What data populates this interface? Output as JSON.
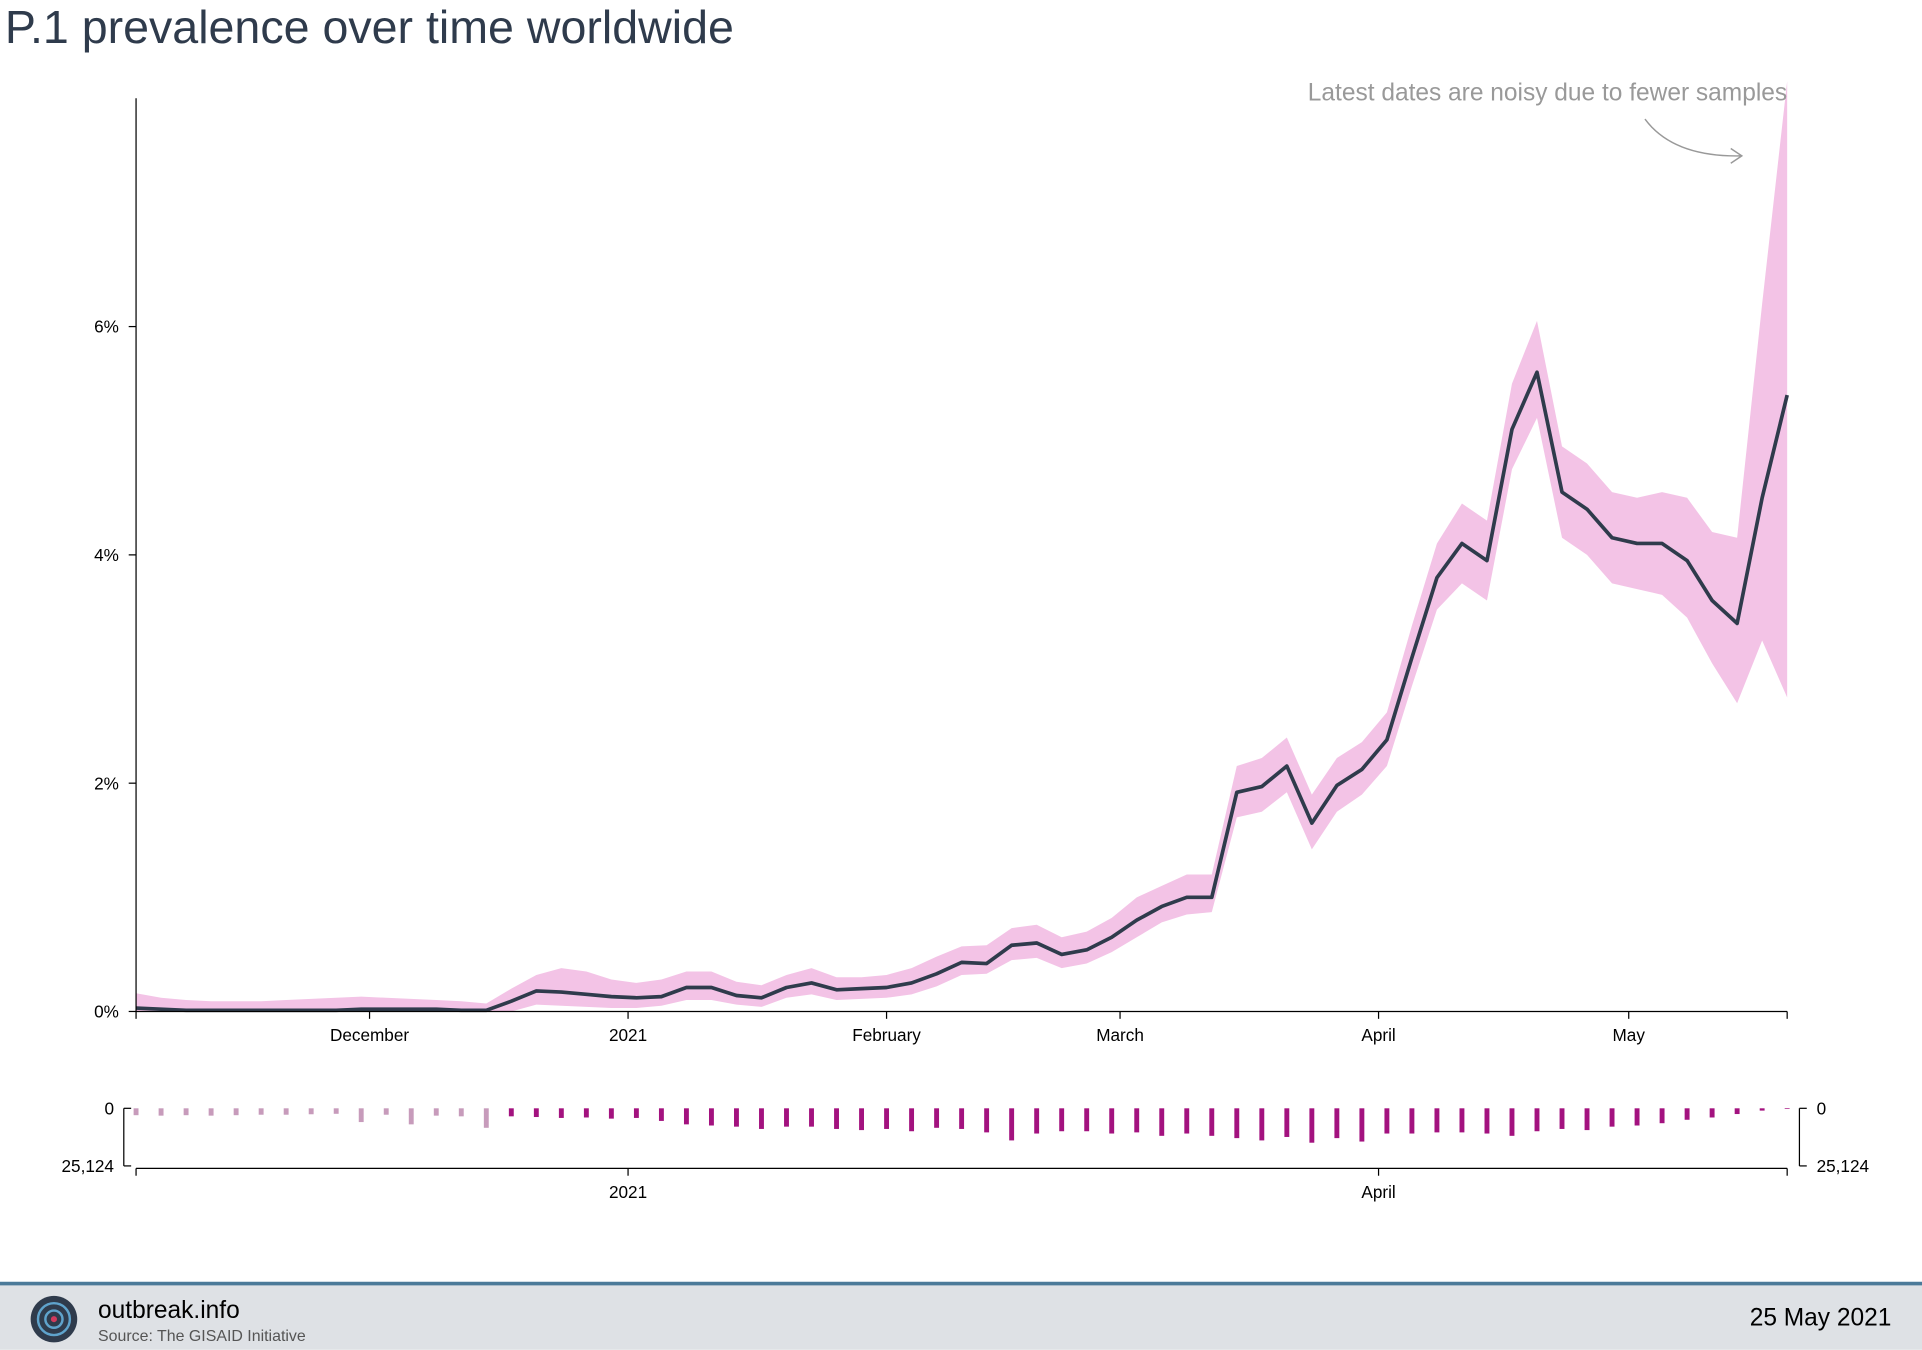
{
  "chart_data": [
    {
      "type": "line",
      "title": "P.1 prevalence over time worldwide",
      "annotation": "Latest dates are noisy due to fewer samples",
      "x": [
        "2020-11-03",
        "2020-11-06",
        "2020-11-09",
        "2020-11-12",
        "2020-11-15",
        "2020-11-18",
        "2020-11-21",
        "2020-11-24",
        "2020-11-27",
        "2020-11-30",
        "2020-12-03",
        "2020-12-06",
        "2020-12-09",
        "2020-12-12",
        "2020-12-15",
        "2020-12-18",
        "2020-12-21",
        "2020-12-24",
        "2020-12-27",
        "2020-12-30",
        "2021-01-02",
        "2021-01-05",
        "2021-01-08",
        "2021-01-11",
        "2021-01-14",
        "2021-01-17",
        "2021-01-20",
        "2021-01-23",
        "2021-01-26",
        "2021-01-29",
        "2021-02-01",
        "2021-02-04",
        "2021-02-07",
        "2021-02-10",
        "2021-02-13",
        "2021-02-16",
        "2021-02-19",
        "2021-02-22",
        "2021-02-25",
        "2021-02-28",
        "2021-03-03",
        "2021-03-06",
        "2021-03-09",
        "2021-03-12",
        "2021-03-15",
        "2021-03-18",
        "2021-03-21",
        "2021-03-24",
        "2021-03-27",
        "2021-03-30",
        "2021-04-02",
        "2021-04-05",
        "2021-04-08",
        "2021-04-11",
        "2021-04-14",
        "2021-04-17",
        "2021-04-20",
        "2021-04-23",
        "2021-04-26",
        "2021-04-29",
        "2021-05-02",
        "2021-05-05",
        "2021-05-08",
        "2021-05-11",
        "2021-05-14",
        "2021-05-17",
        "2021-05-20"
      ],
      "values": [
        0.03,
        0.02,
        0.01,
        0.01,
        0.01,
        0.01,
        0.01,
        0.01,
        0.01,
        0.02,
        0.02,
        0.02,
        0.02,
        0.01,
        0.01,
        0.09,
        0.18,
        0.17,
        0.15,
        0.13,
        0.12,
        0.13,
        0.21,
        0.21,
        0.14,
        0.12,
        0.21,
        0.25,
        0.19,
        0.2,
        0.21,
        0.25,
        0.33,
        0.43,
        0.42,
        0.58,
        0.6,
        0.5,
        0.54,
        0.65,
        0.8,
        0.92,
        1.0,
        1.0,
        1.92,
        1.97,
        2.15,
        1.65,
        1.98,
        2.12,
        2.38,
        3.1,
        3.8,
        4.1,
        3.95,
        5.1,
        5.6,
        4.55,
        4.4,
        4.15,
        4.1,
        4.1,
        3.95,
        3.6,
        3.4,
        4.5,
        5.4
      ],
      "lower": [
        0,
        0,
        0,
        0,
        0,
        0,
        0,
        0,
        0,
        0,
        0,
        0,
        0,
        0,
        0,
        0,
        0.06,
        0.05,
        0.04,
        0.03,
        0.03,
        0.05,
        0.1,
        0.1,
        0.06,
        0.04,
        0.12,
        0.15,
        0.1,
        0.11,
        0.12,
        0.15,
        0.22,
        0.32,
        0.33,
        0.45,
        0.47,
        0.38,
        0.42,
        0.52,
        0.65,
        0.78,
        0.85,
        0.87,
        1.7,
        1.75,
        1.92,
        1.42,
        1.75,
        1.9,
        2.15,
        2.85,
        3.52,
        3.75,
        3.6,
        4.75,
        5.2,
        4.15,
        4.0,
        3.75,
        3.7,
        3.65,
        3.45,
        3.05,
        2.7,
        3.25,
        2.75
      ],
      "upper": [
        0.16,
        0.12,
        0.1,
        0.09,
        0.09,
        0.09,
        0.1,
        0.11,
        0.12,
        0.13,
        0.12,
        0.11,
        0.1,
        0.09,
        0.07,
        0.2,
        0.32,
        0.38,
        0.35,
        0.28,
        0.25,
        0.28,
        0.35,
        0.35,
        0.26,
        0.23,
        0.32,
        0.38,
        0.3,
        0.3,
        0.32,
        0.38,
        0.48,
        0.57,
        0.58,
        0.73,
        0.76,
        0.65,
        0.7,
        0.82,
        1.0,
        1.1,
        1.2,
        1.2,
        2.15,
        2.22,
        2.4,
        1.9,
        2.22,
        2.36,
        2.62,
        3.38,
        4.1,
        4.45,
        4.3,
        5.5,
        6.05,
        4.95,
        4.8,
        4.55,
        4.5,
        4.55,
        4.5,
        4.2,
        4.15,
        6.2,
        8.15
      ],
      "color": "#2f3b4c",
      "band_color": "#f3c3e6",
      "xlim": [
        "2020-11-03",
        "2021-05-20"
      ],
      "ylim": [
        0,
        8
      ],
      "xticks": [
        {
          "value": "2020-12-01",
          "label": "December"
        },
        {
          "value": "2021-01-01",
          "label": "2021"
        },
        {
          "value": "2021-02-01",
          "label": "February"
        },
        {
          "value": "2021-03-01",
          "label": "March"
        },
        {
          "value": "2021-04-01",
          "label": "April"
        },
        {
          "value": "2021-05-01",
          "label": "May"
        }
      ],
      "yticks": [
        {
          "value": 0,
          "label": "0%"
        },
        {
          "value": 2,
          "label": "2%"
        },
        {
          "value": 4,
          "label": "4%"
        },
        {
          "value": 6,
          "label": "6%"
        }
      ]
    },
    {
      "type": "bar",
      "x": [
        "2020-11-03",
        "2020-11-06",
        "2020-11-09",
        "2020-11-12",
        "2020-11-15",
        "2020-11-18",
        "2020-11-21",
        "2020-11-24",
        "2020-11-27",
        "2020-11-30",
        "2020-12-03",
        "2020-12-06",
        "2020-12-09",
        "2020-12-12",
        "2020-12-15",
        "2020-12-18",
        "2020-12-21",
        "2020-12-24",
        "2020-12-27",
        "2020-12-30",
        "2021-01-02",
        "2021-01-05",
        "2021-01-08",
        "2021-01-11",
        "2021-01-14",
        "2021-01-17",
        "2021-01-20",
        "2021-01-23",
        "2021-01-26",
        "2021-01-29",
        "2021-02-01",
        "2021-02-04",
        "2021-02-07",
        "2021-02-10",
        "2021-02-13",
        "2021-02-16",
        "2021-02-19",
        "2021-02-22",
        "2021-02-25",
        "2021-02-28",
        "2021-03-03",
        "2021-03-06",
        "2021-03-09",
        "2021-03-12",
        "2021-03-15",
        "2021-03-18",
        "2021-03-21",
        "2021-03-24",
        "2021-03-27",
        "2021-03-30",
        "2021-04-02",
        "2021-04-05",
        "2021-04-08",
        "2021-04-11",
        "2021-04-14",
        "2021-04-17",
        "2021-04-20",
        "2021-04-23",
        "2021-04-26",
        "2021-04-29",
        "2021-05-02",
        "2021-05-05",
        "2021-05-08",
        "2021-05-11",
        "2021-05-14",
        "2021-05-17",
        "2021-05-20"
      ],
      "values": [
        3000,
        3200,
        3000,
        3200,
        3000,
        2800,
        2800,
        2600,
        2400,
        6000,
        2800,
        7000,
        3200,
        3500,
        8500,
        3500,
        3800,
        4200,
        4000,
        4500,
        4200,
        5500,
        7000,
        7500,
        8000,
        9000,
        8000,
        8000,
        9000,
        9500,
        9000,
        10000,
        8500,
        9000,
        10500,
        14000,
        11000,
        10000,
        10000,
        11000,
        10500,
        12000,
        11000,
        12000,
        13000,
        14000,
        12500,
        15000,
        13000,
        14500,
        11000,
        11000,
        10500,
        10500,
        11000,
        12000,
        10000,
        9000,
        9500,
        8000,
        7500,
        6500,
        5000,
        4000,
        2500,
        1000,
        300
      ],
      "colors": [
        "#c79bbb",
        "#c79bbb",
        "#c79bbb",
        "#c79bbb",
        "#c79bbb",
        "#c79bbb",
        "#c79bbb",
        "#c79bbb",
        "#c79bbb",
        "#c79bbb",
        "#c79bbb",
        "#c79bbb",
        "#c79bbb",
        "#c79bbb",
        "#c79bbb",
        "#a3127f",
        "#a3127f",
        "#a3127f",
        "#a3127f",
        "#a3127f",
        "#a3127f",
        "#a3127f",
        "#a3127f",
        "#a3127f",
        "#a3127f",
        "#a3127f",
        "#a3127f",
        "#a3127f",
        "#a3127f",
        "#a3127f",
        "#a3127f",
        "#a3127f",
        "#a3127f",
        "#a3127f",
        "#a3127f",
        "#a3127f",
        "#a3127f",
        "#a3127f",
        "#a3127f",
        "#a3127f",
        "#a3127f",
        "#a3127f",
        "#a3127f",
        "#a3127f",
        "#a3127f",
        "#a3127f",
        "#a3127f",
        "#a3127f",
        "#a3127f",
        "#a3127f",
        "#a3127f",
        "#a3127f",
        "#a3127f",
        "#a3127f",
        "#a3127f",
        "#a3127f",
        "#a3127f",
        "#a3127f",
        "#a3127f",
        "#a3127f",
        "#a3127f",
        "#a3127f",
        "#a3127f",
        "#a3127f",
        "#a3127f",
        "#a3127f",
        "#a3127f"
      ],
      "xlim": [
        "2020-11-03",
        "2021-05-20"
      ],
      "ylim": [
        0,
        25124
      ],
      "xticks": [
        {
          "value": "2021-01-01",
          "label": "2021"
        },
        {
          "value": "2021-04-01",
          "label": "April"
        }
      ],
      "yticks": [
        0,
        {
          "value": 25124,
          "label": "25,124"
        }
      ]
    }
  ],
  "footer": {
    "brand": "outbreak.info",
    "source": "Source: The GISAID Initiative",
    "date": "25 May 2021"
  }
}
